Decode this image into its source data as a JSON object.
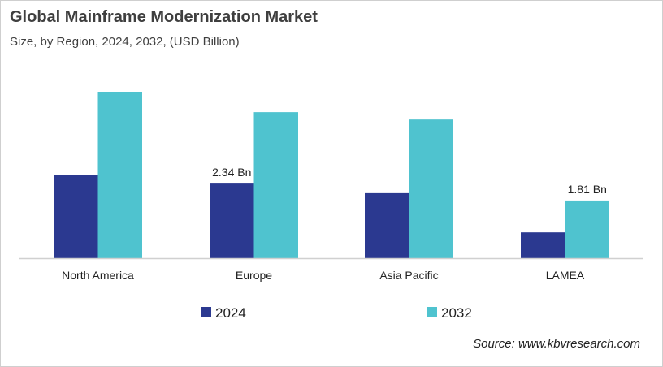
{
  "chart_data": {
    "type": "bar",
    "title": "Global Mainframe Modernization Market",
    "subtitle": "Size, by Region, 2024, 2032, (USD Billion)",
    "categories": [
      "North America",
      "Europe",
      "Asia Pacific",
      "LAMEA"
    ],
    "series": [
      {
        "name": "2024",
        "color": "#2b3990",
        "values": [
          2.62,
          2.34,
          2.04,
          0.81
        ]
      },
      {
        "name": "2032",
        "color": "#4fc3cf",
        "values": [
          5.22,
          4.58,
          4.35,
          1.81
        ]
      }
    ],
    "data_labels": [
      {
        "series": 0,
        "category": 1,
        "text": "2.34 Bn"
      },
      {
        "series": 1,
        "category": 3,
        "text": "1.81 Bn"
      }
    ],
    "ylim": [
      0,
      5.5
    ],
    "grid": false,
    "legend": "bottom",
    "source": "Source: www.kbvresearch.com"
  }
}
